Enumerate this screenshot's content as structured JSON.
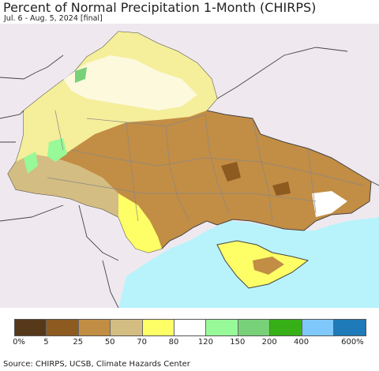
{
  "title": "Percent of Normal Precipitation 1-Month (CHIRPS)",
  "subtitle": "Jul. 6 - Aug. 5, 2024 [final]",
  "source": "Source: CHIRPS, UCSB, Climate Hazards Center",
  "colors": {
    "land_outside": "#efe9ef",
    "sea": "#b8f3fb",
    "border": "#444444",
    "oblast_border": "#888888"
  },
  "legend": {
    "colors": [
      "#56391a",
      "#8d5b20",
      "#c28d44",
      "#d4bd82",
      "#fefe66",
      "#ffffff",
      "#98f998",
      "#78d078",
      "#37b017",
      "#7ec8fc",
      "#1e7ab8"
    ],
    "ticks": [
      "0%",
      "5",
      "25",
      "50",
      "70",
      "80",
      "120",
      "150",
      "200",
      "400",
      "600%"
    ]
  }
}
